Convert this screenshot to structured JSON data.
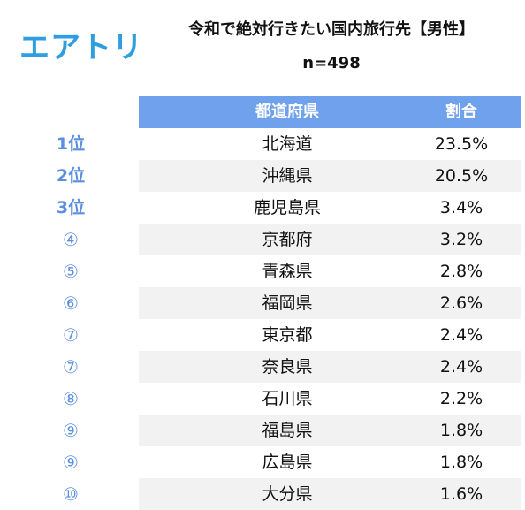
{
  "brand": {
    "logo_text": "エアトリ",
    "accent_color": "#2f9ee0"
  },
  "chart_data": {
    "type": "table",
    "title": "令和で絶対行きたい国内旅行先【男性】",
    "subtitle": "n=498",
    "header_color": "#6fa1ec",
    "rank_color": "#5b8fe0",
    "columns": [
      "都道府県",
      "割合"
    ],
    "rows": [
      {
        "rank": "1位",
        "prefecture": "北海道",
        "value": "23.5%"
      },
      {
        "rank": "2位",
        "prefecture": "沖縄県",
        "value": "20.5%"
      },
      {
        "rank": "3位",
        "prefecture": "鹿児島県",
        "value": "3.4%"
      },
      {
        "rank": "④",
        "prefecture": "京都府",
        "value": "3.2%"
      },
      {
        "rank": "⑤",
        "prefecture": "青森県",
        "value": "2.8%"
      },
      {
        "rank": "⑥",
        "prefecture": "福岡県",
        "value": "2.6%"
      },
      {
        "rank": "⑦",
        "prefecture": "東京都",
        "value": "2.4%"
      },
      {
        "rank": "⑦",
        "prefecture": "奈良県",
        "value": "2.4%"
      },
      {
        "rank": "⑧",
        "prefecture": "石川県",
        "value": "2.2%"
      },
      {
        "rank": "⑨",
        "prefecture": "福島県",
        "value": "1.8%"
      },
      {
        "rank": "⑨",
        "prefecture": "広島県",
        "value": "1.8%"
      },
      {
        "rank": "⑩",
        "prefecture": "大分県",
        "value": "1.6%"
      }
    ]
  }
}
